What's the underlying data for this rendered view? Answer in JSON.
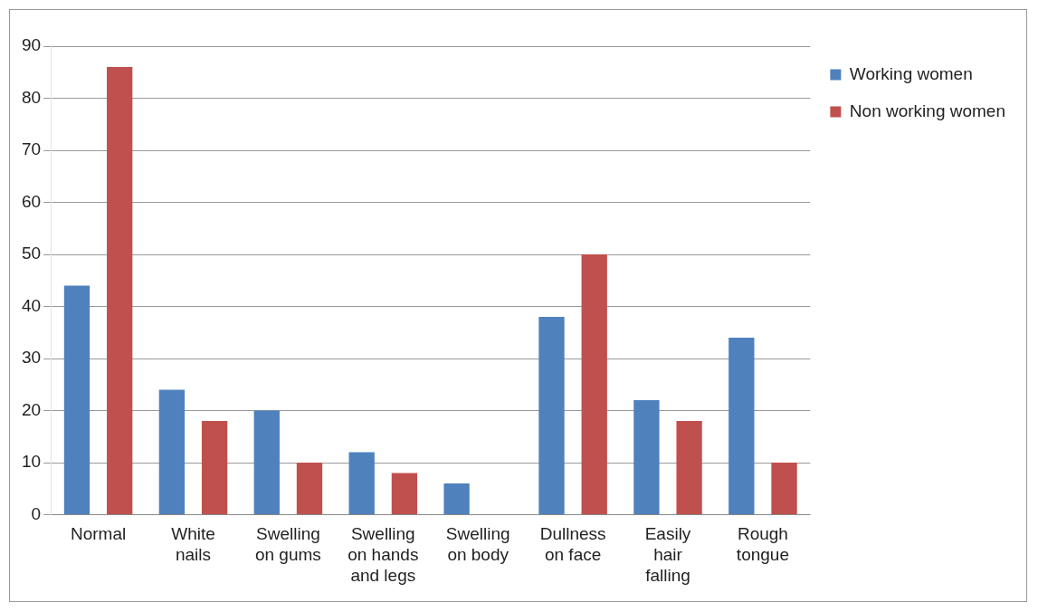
{
  "chart_data": {
    "type": "bar",
    "categories": [
      "Normal",
      "White nails",
      "Swelling on gums",
      "Swelling on hands and legs",
      "Swelling on body",
      "Dullness on face",
      "Easily hair falling",
      "Rough tongue"
    ],
    "series": [
      {
        "name": "Working women",
        "color": "#4f81bd",
        "values": [
          44,
          24,
          20,
          12,
          6,
          38,
          22,
          34
        ]
      },
      {
        "name": "Non working women",
        "color": "#c0504d",
        "values": [
          86,
          18,
          10,
          8,
          0,
          50,
          18,
          10
        ]
      }
    ],
    "ylim": [
      0,
      90
    ],
    "yticks": [
      0,
      10,
      20,
      30,
      40,
      50,
      60,
      70,
      80,
      90
    ],
    "grid": "y",
    "legend": "top right"
  }
}
